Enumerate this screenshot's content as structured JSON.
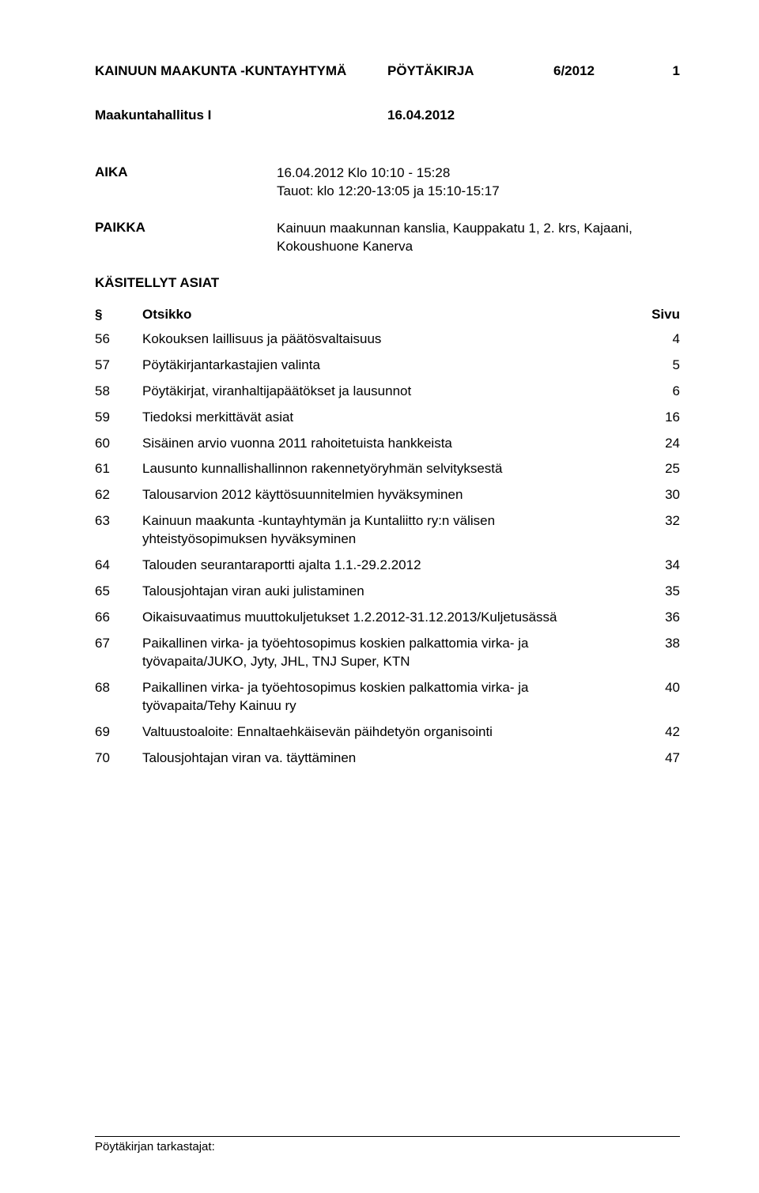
{
  "header": {
    "org": "KAINUUN MAAKUNTA -KUNTAYHTYMÄ",
    "docType": "PÖYTÄKIRJA",
    "docNumber": "6/2012",
    "pageNumber": "1"
  },
  "subheader": {
    "committee": "Maakuntahallitus I",
    "date": "16.04.2012"
  },
  "info": {
    "timeLabel": "AIKA",
    "timeValue": "16.04.2012 Klo 10:10 - 15:28\nTauot: klo 12:20-13:05 ja 15:10-15:17",
    "placeLabel": "PAIKKA",
    "placeValue": "Kainuun maakunnan kanslia, Kauppakatu 1, 2. krs, Kajaani, Kokoushuone Kanerva"
  },
  "casesHeading": "KÄSITELLYT ASIAT",
  "tableHeaders": {
    "num": "§",
    "title": "Otsikko",
    "page": "Sivu"
  },
  "rows": [
    {
      "num": "56",
      "title": "Kokouksen laillisuus ja päätösvaltaisuus",
      "page": "4"
    },
    {
      "num": "57",
      "title": "Pöytäkirjantarkastajien valinta",
      "page": "5"
    },
    {
      "num": "58",
      "title": "Pöytäkirjat, viranhaltijapäätökset ja lausunnot",
      "page": "6"
    },
    {
      "num": "59",
      "title": "Tiedoksi merkittävät asiat",
      "page": "16"
    },
    {
      "num": "60",
      "title": "Sisäinen arvio vuonna 2011 rahoitetuista hankkeista",
      "page": "24"
    },
    {
      "num": "61",
      "title": "Lausunto kunnallishallinnon rakennetyöryhmän selvityksestä",
      "page": "25"
    },
    {
      "num": "62",
      "title": "Talousarvion 2012 käyttösuunnitelmien hyväksyminen",
      "page": "30"
    },
    {
      "num": "63",
      "title": "Kainuun maakunta -kuntayhtymän ja Kuntaliitto ry:n välisen yhteistyösopimuksen hyväksyminen",
      "page": "32"
    },
    {
      "num": "64",
      "title": "Talouden seurantaraportti ajalta 1.1.-29.2.2012",
      "page": "34"
    },
    {
      "num": "65",
      "title": "Talousjohtajan viran auki julistaminen",
      "page": "35"
    },
    {
      "num": "66",
      "title": "Oikaisuvaatimus muuttokuljetukset 1.2.2012-31.12.2013/Kuljetusässä",
      "page": "36"
    },
    {
      "num": "67",
      "title": "Paikallinen virka- ja työehtosopimus koskien palkattomia virka- ja työvapaita/JUKO, Jyty, JHL, TNJ Super, KTN",
      "page": "38"
    },
    {
      "num": "68",
      "title": "Paikallinen virka- ja työehtosopimus koskien palkattomia virka- ja työvapaita/Tehy Kainuu ry",
      "page": "40"
    },
    {
      "num": "69",
      "title": "Valtuustoaloite: Ennaltaehkäisevän päihdetyön organisointi",
      "page": "42"
    },
    {
      "num": "70",
      "title": "Talousjohtajan viran va. täyttäminen",
      "page": "47"
    }
  ],
  "footer": "Pöytäkirjan tarkastajat:",
  "style": {
    "pageWidth": 960,
    "pageHeight": 1509,
    "backgroundColor": "#ffffff",
    "textColor": "#000000",
    "baseFontSize": 17,
    "footerFontSize": 15,
    "fontFamily": "Arial, Helvetica, sans-serif",
    "contentPaddingLeft": 120,
    "contentPaddingRight": 100,
    "colNumWidth": 60,
    "colPageWidth": 60,
    "infoLabelWidth": 230
  }
}
